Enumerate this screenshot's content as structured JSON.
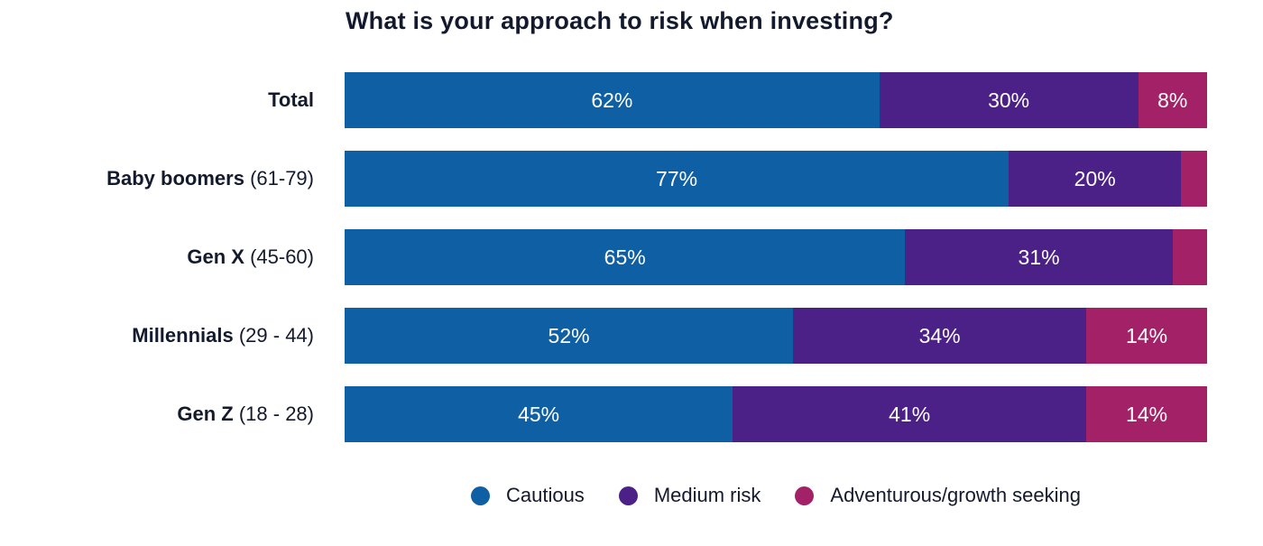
{
  "title": "What is your approach to risk when investing?",
  "colors": {
    "cautious": "#0f5fa4",
    "medium_risk": "#4c2187",
    "adventurous": "#a32166",
    "title_text": "#141a2d",
    "bar_value_text": "#ffffff",
    "background": "#ffffff"
  },
  "chart_data": {
    "type": "bar",
    "variant": "horizontal_stacked_percentage",
    "title": "What is your approach to risk when investing?",
    "x_range": [
      0,
      100
    ],
    "value_suffix": "%",
    "grid": false,
    "legend_position": "bottom",
    "categories": [
      "Total",
      "Baby boomers (61-79)",
      "Gen X (45-60)",
      "Millennials (29 - 44)",
      "Gen Z (18 - 28)"
    ],
    "category_labels": [
      {
        "bold": "Total",
        "range": ""
      },
      {
        "bold": "Baby boomers",
        "range": "(61-79)"
      },
      {
        "bold": "Gen X",
        "range": "(45-60)"
      },
      {
        "bold": "Millennials",
        "range": "(29 - 44)"
      },
      {
        "bold": "Gen Z",
        "range": "(18 - 28)"
      }
    ],
    "series": [
      {
        "name": "Cautious",
        "color": "#0f5fa4",
        "values": [
          62,
          77,
          65,
          52,
          45
        ],
        "labels": [
          "62%",
          "77%",
          "65%",
          "52%",
          "45%"
        ]
      },
      {
        "name": "Medium risk",
        "color": "#4c2187",
        "values": [
          30,
          20,
          31,
          34,
          41
        ],
        "labels": [
          "30%",
          "20%",
          "31%",
          "34%",
          "41%"
        ]
      },
      {
        "name": "Adventurous/growth seeking",
        "color": "#a32166",
        "values": [
          8,
          3,
          4,
          14,
          14
        ],
        "labels": [
          "8%",
          "",
          "",
          "14%",
          "14%"
        ]
      }
    ]
  },
  "legend": {
    "items": [
      {
        "label": "Cautious",
        "color": "#0f5fa4"
      },
      {
        "label": "Medium risk",
        "color": "#4c2187"
      },
      {
        "label": "Adventurous/growth seeking",
        "color": "#a32166"
      }
    ]
  }
}
